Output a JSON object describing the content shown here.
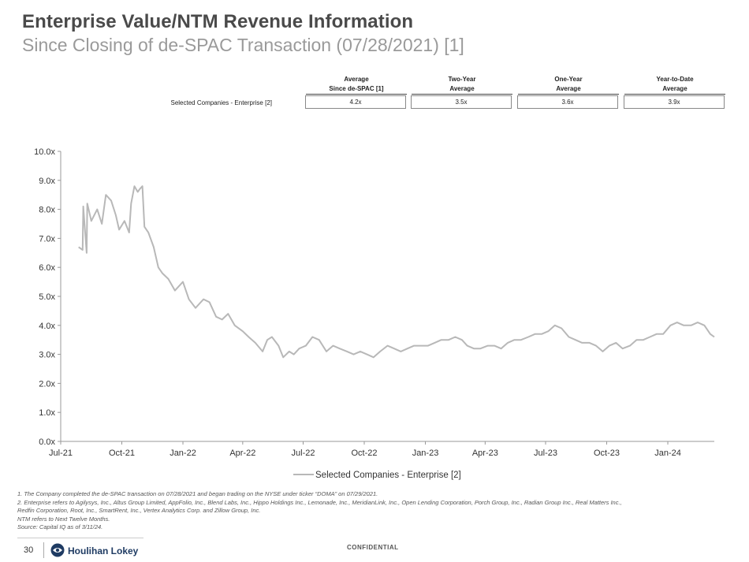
{
  "header": {
    "title": "Enterprise Value/NTM Revenue Information",
    "subtitle": "Since Closing of de-SPAC Transaction (07/28/2021) [1]"
  },
  "summary_table": {
    "columns": [
      {
        "line1": "Average",
        "line2": "Since de-SPAC [1]"
      },
      {
        "line1": "Two-Year",
        "line2": "Average"
      },
      {
        "line1": "One-Year",
        "line2": "Average"
      },
      {
        "line1": "Year-to-Date",
        "line2": "Average"
      }
    ],
    "row_label": "Selected Companies - Enterprise [2]",
    "values": [
      "4.2x",
      "3.5x",
      "3.6x",
      "3.9x"
    ]
  },
  "chart_data": {
    "type": "line",
    "title": "",
    "xlabel": "",
    "ylabel": "",
    "ylim": [
      0,
      10
    ],
    "y_ticks": [
      "0.0x",
      "1.0x",
      "2.0x",
      "3.0x",
      "4.0x",
      "5.0x",
      "6.0x",
      "7.0x",
      "8.0x",
      "9.0x",
      "10.0x"
    ],
    "x_ticks": [
      "Jul-21",
      "Oct-21",
      "Jan-22",
      "Apr-22",
      "Jul-22",
      "Oct-22",
      "Jan-23",
      "Apr-23",
      "Jul-23",
      "Oct-23",
      "Jan-24"
    ],
    "x_range": [
      "2021-07-01",
      "2024-03-11"
    ],
    "legend_position": "bottom",
    "series": [
      {
        "name": "Selected Companies - Enterprise [2]",
        "color": "#b8b8b8",
        "x": [
          "2021-07-28",
          "2021-08-03",
          "2021-08-04",
          "2021-08-09",
          "2021-08-10",
          "2021-08-16",
          "2021-08-25",
          "2021-09-01",
          "2021-09-07",
          "2021-09-15",
          "2021-09-22",
          "2021-09-27",
          "2021-10-05",
          "2021-10-12",
          "2021-10-15",
          "2021-10-20",
          "2021-10-25",
          "2021-10-28",
          "2021-11-01",
          "2021-11-04",
          "2021-11-10",
          "2021-11-18",
          "2021-11-25",
          "2021-12-01",
          "2021-12-10",
          "2021-12-20",
          "2022-01-01",
          "2022-01-10",
          "2022-01-20",
          "2022-02-01",
          "2022-02-10",
          "2022-02-20",
          "2022-03-01",
          "2022-03-10",
          "2022-03-20",
          "2022-04-01",
          "2022-04-10",
          "2022-04-20",
          "2022-05-01",
          "2022-05-08",
          "2022-05-15",
          "2022-05-25",
          "2022-06-01",
          "2022-06-10",
          "2022-06-17",
          "2022-06-25",
          "2022-07-05",
          "2022-07-15",
          "2022-07-25",
          "2022-08-05",
          "2022-08-15",
          "2022-08-25",
          "2022-09-05",
          "2022-09-15",
          "2022-09-25",
          "2022-10-05",
          "2022-10-15",
          "2022-10-25",
          "2022-11-05",
          "2022-11-15",
          "2022-11-25",
          "2022-12-05",
          "2022-12-15",
          "2022-12-25",
          "2023-01-05",
          "2023-01-15",
          "2023-01-25",
          "2023-02-05",
          "2023-02-15",
          "2023-02-25",
          "2023-03-05",
          "2023-03-15",
          "2023-03-25",
          "2023-04-05",
          "2023-04-15",
          "2023-04-25",
          "2023-05-05",
          "2023-05-15",
          "2023-05-25",
          "2023-06-05",
          "2023-06-15",
          "2023-06-25",
          "2023-07-05",
          "2023-07-15",
          "2023-07-25",
          "2023-08-05",
          "2023-08-15",
          "2023-08-25",
          "2023-09-05",
          "2023-09-15",
          "2023-09-25",
          "2023-10-05",
          "2023-10-15",
          "2023-10-25",
          "2023-11-05",
          "2023-11-15",
          "2023-11-25",
          "2023-12-05",
          "2023-12-15",
          "2023-12-25",
          "2024-01-05",
          "2024-01-15",
          "2024-01-25",
          "2024-02-05",
          "2024-02-15",
          "2024-02-25",
          "2024-03-05",
          "2024-03-11"
        ],
        "y": [
          6.7,
          6.6,
          8.1,
          6.5,
          8.2,
          7.6,
          8.0,
          7.5,
          8.5,
          8.3,
          7.8,
          7.3,
          7.6,
          7.2,
          8.2,
          8.8,
          8.6,
          8.7,
          8.8,
          7.4,
          7.2,
          6.7,
          6.0,
          5.8,
          5.6,
          5.2,
          5.5,
          4.9,
          4.6,
          4.9,
          4.8,
          4.3,
          4.2,
          4.4,
          4.0,
          3.8,
          3.6,
          3.4,
          3.1,
          3.5,
          3.6,
          3.3,
          2.9,
          3.1,
          3.0,
          3.2,
          3.3,
          3.6,
          3.5,
          3.1,
          3.3,
          3.2,
          3.1,
          3.0,
          3.1,
          3.0,
          2.9,
          3.1,
          3.3,
          3.2,
          3.1,
          3.2,
          3.3,
          3.3,
          3.3,
          3.4,
          3.5,
          3.5,
          3.6,
          3.5,
          3.3,
          3.2,
          3.2,
          3.3,
          3.3,
          3.2,
          3.4,
          3.5,
          3.5,
          3.6,
          3.7,
          3.7,
          3.8,
          4.0,
          3.9,
          3.6,
          3.5,
          3.4,
          3.4,
          3.3,
          3.1,
          3.3,
          3.4,
          3.2,
          3.3,
          3.5,
          3.5,
          3.6,
          3.7,
          3.7,
          4.0,
          4.1,
          4.0,
          4.0,
          4.1,
          4.0,
          3.7,
          3.6
        ]
      }
    ]
  },
  "footnotes": [
    "1. The Company completed the de-SPAC transaction on 07/28/2021 and began trading on the NYSE under ticker “DOMA” on 07/29/2021.",
    "2. Enterprise refers to Agilysys, Inc., Altus Group Limited, AppFolio, Inc., Blend Labs, Inc., Hippo Holdings Inc., Lemonade, Inc., MeridianLink, Inc., Open Lending Corporation, Porch Group, Inc., Radian Group Inc., Real Matters Inc.,",
    "Redfin Corporation, Root, Inc., SmartRent, Inc., Vertex Analytics Corp. and Zillow Group, Inc.",
    "NTM refers to Next Twelve Months.",
    "Source: Capital IQ as of 3/11/24."
  ],
  "footer": {
    "page_number": "30",
    "brand": "Houlihan Lokey",
    "confidential": "CONFIDENTIAL"
  }
}
